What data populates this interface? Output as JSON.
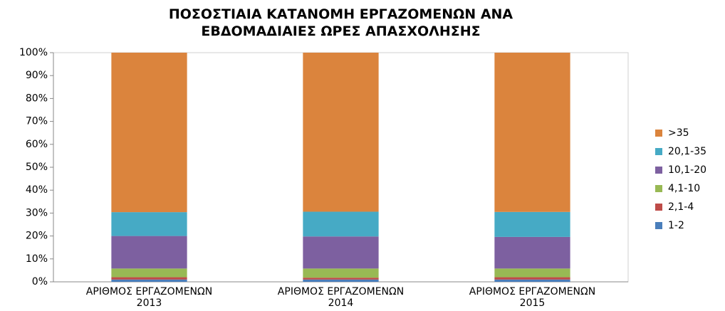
{
  "chart_data": {
    "type": "stacked_bar",
    "title": "ΠΟΣΟΣΤΙΑΙΑ ΚΑΤΑΝΟΜΗ ΕΡΓΑΖΟΜΕΝΩΝ ΑΝΑ\nΕΒΔΟΜΑΔΙΑΙΕΣ ΩΡΕΣ ΑΠΑΣΧΟΛΗΣΗΣ",
    "categories": [
      "ΑΡΙΘΜΟΣ ΕΡΓΑΖΟΜΕΝΩΝ\n2013",
      "ΑΡΙΘΜΟΣ ΕΡΓΑΖΟΜΕΝΩΝ\n2014",
      "ΑΡΙΘΜΟΣ ΕΡΓΑΖΟΜΕΝΩΝ\n2015"
    ],
    "series": [
      {
        "name": "1-2",
        "color": "#4a7ebb",
        "values": [
          1.0,
          1.0,
          1.0
        ]
      },
      {
        "name": "2,1-4",
        "color": "#be4b48",
        "values": [
          1.0,
          0.8,
          1.0
        ]
      },
      {
        "name": "4,1-10",
        "color": "#98b954",
        "values": [
          3.8,
          4.0,
          3.8
        ]
      },
      {
        "name": "10,1-20",
        "color": "#7d60a0",
        "values": [
          14.2,
          14.0,
          13.8
        ]
      },
      {
        "name": "20,1-35",
        "color": "#46aac5",
        "values": [
          10.4,
          10.8,
          10.9
        ]
      },
      {
        "name": ">35",
        "color": "#db843d",
        "values": [
          69.6,
          69.4,
          69.5
        ]
      }
    ],
    "ylim": [
      0,
      100
    ],
    "yticks": [
      {
        "value": 0,
        "label": "0%"
      },
      {
        "value": 10,
        "label": "10%"
      },
      {
        "value": 20,
        "label": "20%"
      },
      {
        "value": 30,
        "label": "30%"
      },
      {
        "value": 40,
        "label": "40%"
      },
      {
        "value": 50,
        "label": "50%"
      },
      {
        "value": 60,
        "label": "60%"
      },
      {
        "value": 70,
        "label": "70%"
      },
      {
        "value": 80,
        "label": "80%"
      },
      {
        "value": 90,
        "label": "90%"
      },
      {
        "value": 100,
        "label": "100%"
      }
    ],
    "legend": "right"
  }
}
